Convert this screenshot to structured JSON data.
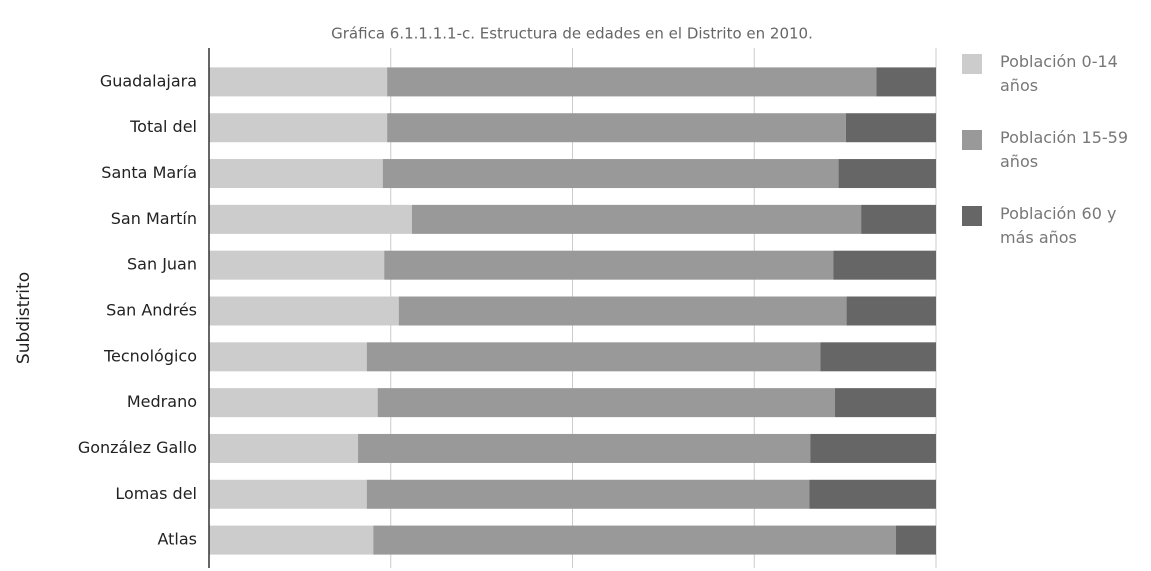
{
  "chart_data": {
    "type": "stacked_barh",
    "title": "Gráfica 6.1.1.1.1-c. Estructura de edades en el Distrito en 2010.",
    "y_label": "Subdistrito",
    "categories": [
      "Guadalajara",
      "Total del",
      "Santa María",
      "San Martín",
      "San Juan",
      "San Andrés",
      "Tecnológico",
      "Medrano",
      "González Gallo",
      "Lomas del",
      "Atlas"
    ],
    "series": [
      {
        "name": "Población 0-14 años",
        "color": "#cccccc",
        "values": [
          24.5,
          24.5,
          23.9,
          27.9,
          24.1,
          26.1,
          21.7,
          23.2,
          20.5,
          21.7,
          22.6
        ]
      },
      {
        "name": "Población 15-59 años",
        "color": "#999999",
        "values": [
          67.3,
          63.1,
          62.7,
          61.8,
          61.8,
          61.6,
          62.4,
          62.9,
          62.2,
          60.9,
          71.9
        ]
      },
      {
        "name": "Población 60 y más años",
        "color": "#666666",
        "values": [
          8.2,
          12.4,
          13.4,
          10.3,
          14.1,
          12.3,
          15.9,
          13.9,
          17.3,
          17.4,
          5.5
        ]
      }
    ],
    "xlim": [
      0,
      100
    ],
    "xticks": [
      0,
      25,
      50,
      75,
      100
    ],
    "grid": true,
    "legend": "right"
  }
}
